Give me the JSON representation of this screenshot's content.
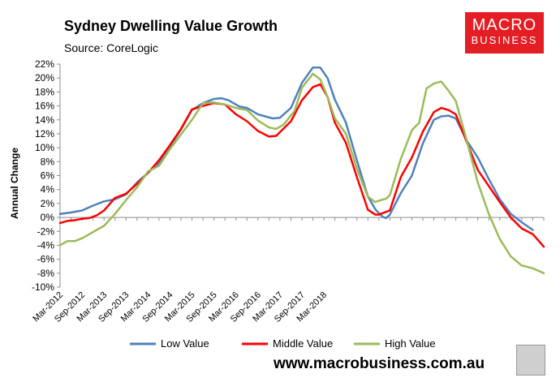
{
  "header": {
    "title": "Sydney Dwelling Value Growth",
    "source": "Source: CoreLogic"
  },
  "logo": {
    "line1": "MACRO",
    "line2": "BUSINESS",
    "color": "#e31e24"
  },
  "footer": {
    "url": "www.macrobusiness.com.au",
    "badge_icon": "wolf-icon"
  },
  "chart_data": {
    "type": "line",
    "title": "Sydney Dwelling Value Growth",
    "xlabel": "",
    "ylabel": "Annual Change",
    "ylim": [
      -10,
      22
    ],
    "ytick_step": 2,
    "y_tick_labels": [
      "-10%",
      "-8%",
      "-6%",
      "-4%",
      "-2%",
      "0%",
      "2%",
      "4%",
      "6%",
      "8%",
      "10%",
      "12%",
      "14%",
      "16%",
      "18%",
      "20%",
      "22%"
    ],
    "x_tick_labels": [
      "Mar-2012",
      "Sep-2012",
      "Mar-2013",
      "Sep-2013",
      "Mar-2014",
      "Sep-2014",
      "Mar-2015",
      "Sep-2015",
      "Mar-2016",
      "Sep-2016",
      "Mar-2017",
      "Sep-2017",
      "Mar-2018"
    ],
    "x_start": "Mar-2012",
    "x_months": 82,
    "grid": false,
    "legend_position": "bottom",
    "series": [
      {
        "name": "Low Value",
        "color": "#4f81bd",
        "points": [
          [
            0,
            0.5
          ],
          [
            3,
            0.7
          ],
          [
            6,
            1.0
          ],
          [
            9,
            1.7
          ],
          [
            12,
            2.3
          ],
          [
            15,
            2.6
          ],
          [
            18,
            3.3
          ],
          [
            21,
            5.0
          ],
          [
            24,
            6.4
          ],
          [
            27,
            7.8
          ],
          [
            30,
            10.2
          ],
          [
            33,
            12.6
          ],
          [
            36,
            15.4
          ],
          [
            39,
            16.4
          ],
          [
            42,
            17.0
          ],
          [
            44,
            17.1
          ],
          [
            46,
            16.8
          ],
          [
            49,
            15.9
          ],
          [
            51,
            15.7
          ],
          [
            54,
            14.8
          ],
          [
            56,
            14.5
          ],
          [
            58,
            14.2
          ],
          [
            60,
            14.3
          ],
          [
            63,
            15.7
          ],
          [
            66,
            19.3
          ],
          [
            69,
            21.5
          ],
          [
            71,
            21.5
          ],
          [
            73,
            20.0
          ],
          [
            75,
            16.9
          ],
          [
            78,
            13.6
          ],
          [
            81,
            8.2
          ],
          [
            84,
            3.0
          ],
          [
            86,
            1.2
          ],
          [
            87,
            0.6
          ],
          [
            88,
            0.1
          ],
          [
            89,
            -0.1
          ],
          [
            90,
            0.4
          ],
          [
            93,
            3.5
          ],
          [
            96,
            6.0
          ],
          [
            99,
            10.6
          ],
          [
            102,
            14.0
          ],
          [
            104,
            14.5
          ],
          [
            106,
            14.6
          ],
          [
            108,
            14.2
          ],
          [
            111,
            11.0
          ],
          [
            114,
            8.6
          ],
          [
            117,
            5.5
          ],
          [
            120,
            2.6
          ],
          [
            123,
            0.5
          ],
          [
            126,
            -0.7
          ],
          [
            129,
            -1.8
          ]
        ]
      },
      {
        "name": "Middle Value",
        "color": "#ff0000",
        "points": [
          [
            0,
            -0.8
          ],
          [
            2,
            -0.5
          ],
          [
            4,
            -0.4
          ],
          [
            6,
            -0.2
          ],
          [
            8,
            -0.1
          ],
          [
            10,
            0.3
          ],
          [
            12,
            1.0
          ],
          [
            15,
            2.8
          ],
          [
            18,
            3.4
          ],
          [
            21,
            4.8
          ],
          [
            24,
            6.4
          ],
          [
            27,
            8.2
          ],
          [
            30,
            10.4
          ],
          [
            33,
            12.7
          ],
          [
            36,
            15.5
          ],
          [
            39,
            16.0
          ],
          [
            42,
            16.4
          ],
          [
            45,
            16.2
          ],
          [
            48,
            14.8
          ],
          [
            51,
            13.8
          ],
          [
            54,
            12.4
          ],
          [
            57,
            11.6
          ],
          [
            59,
            11.7
          ],
          [
            63,
            13.8
          ],
          [
            66,
            16.8
          ],
          [
            69,
            18.7
          ],
          [
            71,
            19.1
          ],
          [
            73,
            17.3
          ],
          [
            75,
            13.6
          ],
          [
            78,
            10.7
          ],
          [
            81,
            5.8
          ],
          [
            84,
            1.1
          ],
          [
            86,
            0.4
          ],
          [
            87,
            0.4
          ],
          [
            89,
            0.8
          ],
          [
            90,
            1.0
          ],
          [
            93,
            5.8
          ],
          [
            96,
            8.6
          ],
          [
            99,
            12.3
          ],
          [
            102,
            15.1
          ],
          [
            104,
            15.7
          ],
          [
            106,
            15.4
          ],
          [
            108,
            14.8
          ],
          [
            111,
            10.8
          ],
          [
            114,
            6.8
          ],
          [
            117,
            4.5
          ],
          [
            120,
            2.2
          ],
          [
            123,
            0.0
          ],
          [
            126,
            -1.6
          ],
          [
            129,
            -2.4
          ],
          [
            132,
            -4.2
          ]
        ]
      },
      {
        "name": "High Value",
        "color": "#9bbb59",
        "points": [
          [
            0,
            -4.0
          ],
          [
            2,
            -3.4
          ],
          [
            4,
            -3.4
          ],
          [
            6,
            -3.0
          ],
          [
            8,
            -2.4
          ],
          [
            10,
            -1.8
          ],
          [
            12,
            -1.2
          ],
          [
            15,
            0.5
          ],
          [
            18,
            2.5
          ],
          [
            21,
            4.3
          ],
          [
            24,
            6.6
          ],
          [
            27,
            7.4
          ],
          [
            30,
            9.8
          ],
          [
            33,
            11.9
          ],
          [
            36,
            14.0
          ],
          [
            39,
            16.4
          ],
          [
            42,
            16.5
          ],
          [
            45,
            16.2
          ],
          [
            48,
            15.7
          ],
          [
            51,
            15.4
          ],
          [
            54,
            13.9
          ],
          [
            57,
            12.9
          ],
          [
            59,
            12.7
          ],
          [
            61,
            13.3
          ],
          [
            64,
            15.3
          ],
          [
            66,
            18.6
          ],
          [
            69,
            20.6
          ],
          [
            71,
            19.8
          ],
          [
            73,
            17.3
          ],
          [
            75,
            14.2
          ],
          [
            78,
            12.0
          ],
          [
            81,
            7.0
          ],
          [
            84,
            3.0
          ],
          [
            86,
            2.2
          ],
          [
            87,
            2.4
          ],
          [
            89,
            2.7
          ],
          [
            90,
            3.2
          ],
          [
            93,
            8.4
          ],
          [
            96,
            12.5
          ],
          [
            98,
            13.6
          ],
          [
            100,
            18.5
          ],
          [
            102,
            19.2
          ],
          [
            104,
            19.5
          ],
          [
            106,
            18.2
          ],
          [
            108,
            16.7
          ],
          [
            111,
            11.0
          ],
          [
            114,
            5.0
          ],
          [
            117,
            0.5
          ],
          [
            120,
            -3.1
          ],
          [
            123,
            -5.6
          ],
          [
            126,
            -6.9
          ],
          [
            129,
            -7.3
          ],
          [
            132,
            -8.0
          ]
        ]
      }
    ]
  }
}
